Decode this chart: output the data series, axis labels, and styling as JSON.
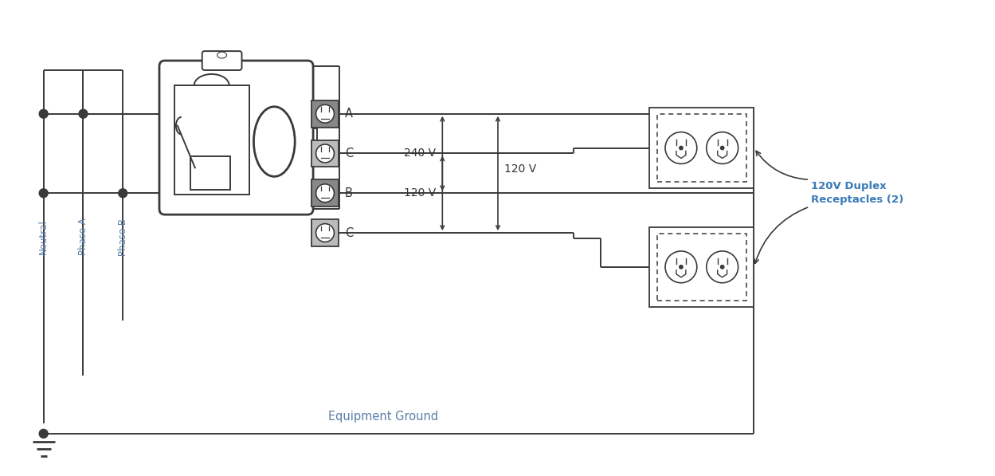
{
  "bg_color": "#ffffff",
  "line_color": "#3a3a3a",
  "label_color": "#5a7fa8",
  "text_color": "#333333",
  "neutral_label": "Neutral",
  "phaseA_label": "Phase A",
  "phaseB_label": "Phase B",
  "voltage_240": "240 V",
  "voltage_120a": "120 V",
  "voltage_120b": "120 V",
  "ground_label": "Equipment Ground",
  "receptacle_label": "120V Duplex\nReceptacles (2)",
  "label_A": "A",
  "label_B": "B",
  "label_C": "C",
  "duplex_color": "#3a7ab8",
  "term_color_dark": "#888888",
  "term_color_light": "#bbbbbb"
}
